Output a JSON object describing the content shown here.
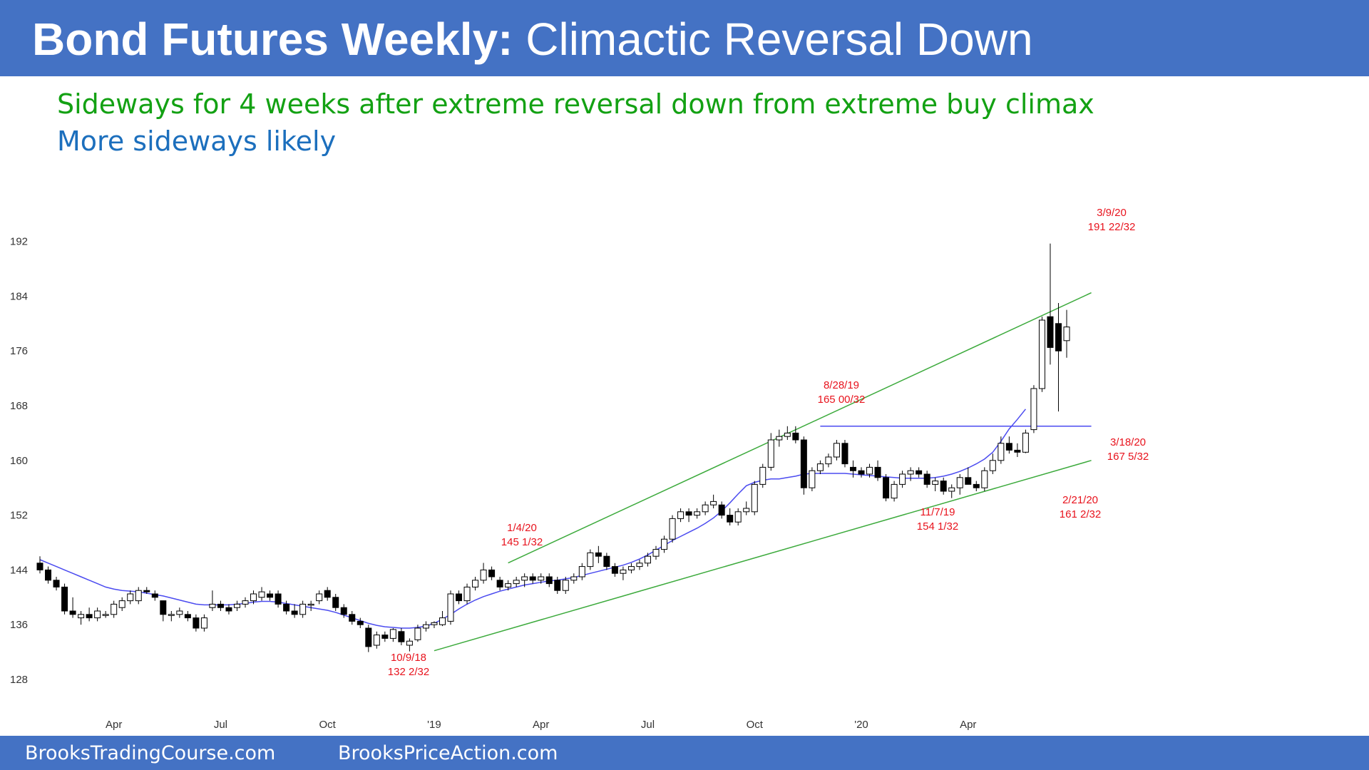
{
  "header": {
    "title_bold": "Bond Futures Weekly:",
    "title_rest": "Climactic Reversal Down",
    "subtitle_green": "Sideways for 4 weeks after extreme reversal down from extreme buy climax",
    "subtitle_blue": "More sideways likely"
  },
  "footer": {
    "left": "BrooksTradingCourse.com",
    "right": "BrooksPriceAction.com"
  },
  "colors": {
    "header_bg": "#4472c4",
    "green_text": "#13a113",
    "blue_text": "#1c6fbd",
    "trend_line": "#3caa3c",
    "ma_line": "#4b4bf0",
    "resistance_line": "#4b4bf0",
    "bear_candle": "#000000",
    "bull_candle": "#ffffff",
    "annotation": "#e8131d"
  },
  "chart_data": {
    "type": "candlestick",
    "title": "",
    "xlabel": "",
    "ylabel": "",
    "ylim": [
      124,
      198
    ],
    "y_ticks": [
      128,
      136,
      144,
      152,
      160,
      168,
      176,
      184,
      192
    ],
    "x_ticks": [
      {
        "label": "Apr",
        "week": 9
      },
      {
        "label": "Jul",
        "week": 22
      },
      {
        "label": "Oct",
        "week": 35
      },
      {
        "label": "'19",
        "week": 48
      },
      {
        "label": "Apr",
        "week": 61
      },
      {
        "label": "Jul",
        "week": 74
      },
      {
        "label": "Oct",
        "week": 87
      },
      {
        "label": "'20",
        "week": 100
      },
      {
        "label": "Apr",
        "week": 113
      }
    ],
    "candles": [
      [
        145,
        146,
        143.5,
        144
      ],
      [
        144,
        144.5,
        142,
        142.5
      ],
      [
        142.5,
        143,
        141,
        141.5
      ],
      [
        141.5,
        142,
        137.5,
        138
      ],
      [
        138,
        140,
        137,
        137.5
      ],
      [
        137,
        138,
        136,
        137.5
      ],
      [
        137.5,
        138.5,
        136.5,
        137
      ],
      [
        137,
        138.5,
        136.5,
        138
      ],
      [
        137.5,
        138,
        137,
        137.5
      ],
      [
        137.5,
        139.5,
        137,
        139
      ],
      [
        138.5,
        140,
        138,
        139.5
      ],
      [
        139.5,
        141,
        139,
        140.5
      ],
      [
        139.5,
        141.5,
        139,
        141
      ],
      [
        141,
        141.5,
        140.5,
        140.8
      ],
      [
        140.5,
        141,
        139.5,
        140
      ],
      [
        139.5,
        139.5,
        136.5,
        137.5
      ],
      [
        137.5,
        138,
        136.5,
        137.5
      ],
      [
        137.5,
        138.5,
        137,
        138
      ],
      [
        137.5,
        138,
        136.5,
        137
      ],
      [
        137,
        137.5,
        135,
        135.5
      ],
      [
        135.5,
        137.5,
        135,
        137
      ],
      [
        138.5,
        141,
        138,
        139
      ],
      [
        139,
        139.5,
        138,
        138.5
      ],
      [
        138.5,
        139,
        137.5,
        138
      ],
      [
        138.5,
        139.5,
        138,
        139
      ],
      [
        139,
        140,
        138.5,
        139.5
      ],
      [
        139.5,
        141,
        139,
        140.5
      ],
      [
        140,
        141.5,
        139.5,
        140.8
      ],
      [
        140.5,
        141,
        139.5,
        140
      ],
      [
        140.5,
        141,
        138.5,
        139
      ],
      [
        139,
        139.5,
        137.5,
        138
      ],
      [
        138,
        139,
        137,
        137.5
      ],
      [
        137.5,
        139.5,
        137,
        139
      ],
      [
        139,
        139.5,
        138,
        139
      ],
      [
        139.5,
        141,
        139,
        140.5
      ],
      [
        141,
        141.5,
        139.5,
        140
      ],
      [
        140,
        140.5,
        138,
        138.5
      ],
      [
        138.5,
        139,
        137,
        137.5
      ],
      [
        137.5,
        138,
        136,
        136.5
      ],
      [
        136.5,
        137,
        135.5,
        136
      ],
      [
        135.5,
        136,
        132,
        132.8
      ],
      [
        133,
        135,
        132.5,
        134.5
      ],
      [
        134.5,
        135,
        133.5,
        134
      ],
      [
        134,
        135.5,
        133.5,
        135.3
      ],
      [
        135,
        135.5,
        133,
        133.5
      ],
      [
        133,
        134,
        132.1,
        133.6
      ],
      [
        133.8,
        136,
        133.5,
        135.5
      ],
      [
        135.5,
        136.5,
        135,
        136
      ],
      [
        136,
        136.5,
        135.5,
        136.3
      ],
      [
        136,
        138,
        135.8,
        137
      ],
      [
        136.5,
        141,
        136,
        140.5
      ],
      [
        140.5,
        141,
        139,
        139.5
      ],
      [
        139.5,
        142,
        139,
        141.5
      ],
      [
        141.5,
        143,
        141,
        142.5
      ],
      [
        142.5,
        145.03,
        142,
        144
      ],
      [
        144,
        144.5,
        142.5,
        143
      ],
      [
        142.5,
        143,
        141,
        141.5
      ],
      [
        141.5,
        142.5,
        141,
        142
      ],
      [
        142,
        143,
        141.5,
        142.5
      ],
      [
        142.5,
        143.5,
        141.5,
        143
      ],
      [
        143,
        143.5,
        142,
        142.5
      ],
      [
        142.5,
        143.5,
        142,
        143
      ],
      [
        143,
        143.5,
        141.5,
        142
      ],
      [
        142.5,
        143,
        140.5,
        141
      ],
      [
        141,
        143,
        140.5,
        142.5
      ],
      [
        142.5,
        143.5,
        142,
        143
      ],
      [
        143,
        145,
        142.5,
        144.5
      ],
      [
        144.5,
        147,
        144,
        146.5
      ],
      [
        146.5,
        147.5,
        145,
        146
      ],
      [
        146,
        146.5,
        144,
        144.5
      ],
      [
        144.5,
        145,
        143,
        143.5
      ],
      [
        143.5,
        144.5,
        142.5,
        144
      ],
      [
        144,
        145,
        143.5,
        144.5
      ],
      [
        144.5,
        145.5,
        144,
        145
      ],
      [
        145,
        146.5,
        144.5,
        146
      ],
      [
        146,
        147.5,
        145.5,
        147
      ],
      [
        147,
        149,
        146.5,
        148.5
      ],
      [
        148.5,
        152,
        148,
        151.5
      ],
      [
        151.5,
        153,
        151,
        152.5
      ],
      [
        152.5,
        153,
        151,
        152
      ],
      [
        152,
        153,
        151.5,
        152.5
      ],
      [
        152.5,
        154,
        152,
        153.5
      ],
      [
        153.5,
        155,
        153,
        154
      ],
      [
        153.5,
        154,
        151.5,
        152
      ],
      [
        152,
        153,
        150.5,
        151
      ],
      [
        151,
        153,
        150.5,
        152.5
      ],
      [
        152.5,
        154,
        152,
        153
      ],
      [
        152.5,
        157,
        152,
        156.5
      ],
      [
        156.5,
        159.5,
        156,
        159
      ],
      [
        159,
        164,
        158.5,
        163
      ],
      [
        163,
        164.5,
        162,
        163.5
      ],
      [
        163.5,
        165,
        163,
        164
      ],
      [
        164,
        165,
        162.5,
        163
      ],
      [
        163,
        163.5,
        155,
        156
      ],
      [
        156,
        159,
        155.5,
        158.5
      ],
      [
        158.5,
        160,
        158,
        159.5
      ],
      [
        159.5,
        161,
        159,
        160.5
      ],
      [
        160.5,
        163,
        160,
        162.5
      ],
      [
        162.5,
        163,
        159,
        159.5
      ],
      [
        159,
        160,
        157.5,
        158.5
      ],
      [
        158.5,
        159,
        157.5,
        158
      ],
      [
        158,
        159.5,
        157.5,
        159
      ],
      [
        159,
        160,
        157,
        157.5
      ],
      [
        157.5,
        158,
        154.03,
        154.5
      ],
      [
        154.5,
        157,
        154,
        156.5
      ],
      [
        156.5,
        158.5,
        156,
        158
      ],
      [
        158,
        159,
        157,
        158.5
      ],
      [
        158.5,
        159,
        157.5,
        158
      ],
      [
        158,
        158.5,
        156,
        156.5
      ],
      [
        156.5,
        157.5,
        155.5,
        157
      ],
      [
        157,
        157.5,
        155,
        155.5
      ],
      [
        155.5,
        156.5,
        154.5,
        156
      ],
      [
        156,
        158,
        155,
        157.5
      ],
      [
        157.5,
        159,
        157,
        156.5
      ],
      [
        156.5,
        157,
        155.5,
        156
      ],
      [
        156,
        159,
        155.5,
        158.5
      ],
      [
        158.5,
        161,
        158,
        160
      ],
      [
        160,
        163.5,
        159.5,
        162.5
      ],
      [
        162.5,
        163.5,
        161,
        161.5
      ],
      [
        161.5,
        162.5,
        160.5,
        161.2
      ],
      [
        161.2,
        164.5,
        161.06,
        164
      ],
      [
        164.5,
        171,
        164,
        170.5
      ],
      [
        170.5,
        181,
        170,
        180.5
      ],
      [
        181,
        191.69,
        174,
        176.5
      ],
      [
        180,
        183,
        167.16,
        176
      ],
      [
        177.5,
        182,
        175,
        179.5
      ]
    ],
    "ma20": [
      145.5,
      145,
      144.5,
      144,
      143.5,
      143,
      142.5,
      142,
      141.5,
      141.2,
      141,
      140.9,
      140.8,
      140.6,
      140.4,
      140.2,
      139.9,
      139.6,
      139.3,
      139,
      138.9,
      138.9,
      138.9,
      138.9,
      139,
      139.1,
      139.3,
      139.4,
      139.4,
      139.3,
      139.1,
      138.9,
      138.7,
      138.5,
      138.3,
      138.1,
      137.8,
      137.4,
      137,
      136.6,
      136.2,
      135.9,
      135.7,
      135.6,
      135.5,
      135.5,
      135.6,
      135.8,
      136.2,
      136.8,
      137.5,
      138.3,
      139,
      139.6,
      140.1,
      140.5,
      140.9,
      141.2,
      141.5,
      141.8,
      142,
      142.2,
      142.4,
      142.5,
      142.7,
      142.9,
      143.2,
      143.5,
      143.8,
      144.1,
      144.4,
      144.7,
      145.1,
      145.6,
      146.2,
      146.9,
      147.6,
      148.3,
      148.9,
      149.5,
      150.1,
      150.8,
      151.6,
      152.6,
      153.8,
      155.1,
      156.3,
      156.8,
      157.1,
      157.3,
      157.3,
      157.5,
      157.7,
      158,
      158.1,
      158.1,
      158.1,
      158.1,
      158.1,
      158,
      157.9,
      157.8,
      157.7,
      157.6,
      157.5,
      157.4,
      157.4,
      157.4,
      157.4,
      157.5,
      157.7,
      158,
      158.4,
      158.9,
      159.5,
      160.2,
      161.2,
      162.8,
      164.6,
      166,
      167.5
    ],
    "resistance": {
      "level": 165.0,
      "from_week": 95,
      "to_week": 128
    },
    "trend_lines": [
      {
        "name": "upper",
        "from": {
          "week": 57,
          "price": 145.03
        },
        "to": {
          "week": 128,
          "price": 184.5
        }
      },
      {
        "name": "lower",
        "from": {
          "week": 48,
          "price": 132.2
        },
        "to": {
          "week": 128,
          "price": 160
        }
      }
    ],
    "annotations": [
      {
        "date": "3/9/20",
        "price": "191 22/32"
      },
      {
        "date": "8/28/19",
        "price": "165 00/32"
      },
      {
        "date": "1/4/20",
        "price": "145 1/32"
      },
      {
        "date": "10/9/18",
        "price": "132 2/32"
      },
      {
        "date": "11/7/19",
        "price": "154 1/32"
      },
      {
        "date": "2/21/20",
        "price": "161 2/32"
      },
      {
        "date": "3/18/20",
        "price": "167 5/32"
      }
    ]
  }
}
